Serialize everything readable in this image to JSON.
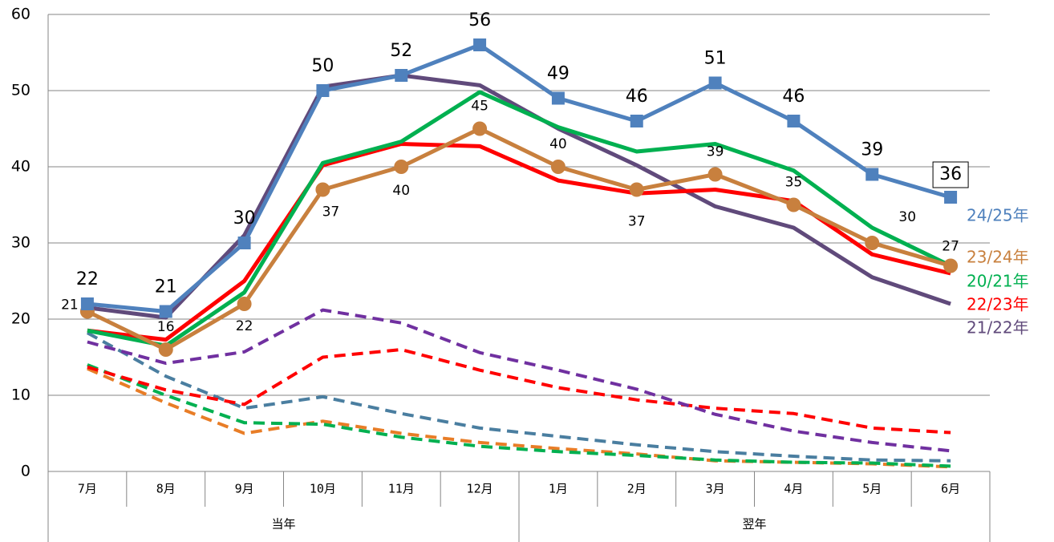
{
  "chart_data": {
    "type": "line",
    "categories": [
      "7月",
      "8月",
      "9月",
      "10月",
      "11月",
      "12月",
      "1月",
      "2月",
      "3月",
      "4月",
      "5月",
      "6月"
    ],
    "group_labels": [
      "当年",
      "翌年"
    ],
    "ylim": [
      0,
      60
    ],
    "yticks": [
      0,
      10,
      20,
      30,
      40,
      50,
      60
    ],
    "grid": true,
    "series": [
      {
        "name": "24/25年",
        "color": "#4f81bd",
        "marker": "square",
        "dashed": false,
        "labels": "large",
        "values": [
          22,
          21,
          30,
          50,
          52,
          56,
          49,
          46,
          51,
          46,
          39,
          36
        ]
      },
      {
        "name": "23/24年",
        "color": "#c8803e",
        "marker": "circle",
        "dashed": false,
        "labels": "small",
        "values": [
          21,
          16,
          22,
          37,
          40,
          45,
          40,
          37,
          39,
          35,
          30,
          27
        ]
      },
      {
        "name": "20/21年",
        "color": "#00b050",
        "dashed": false,
        "values": [
          18.5,
          16.5,
          23.5,
          40.5,
          43.3,
          49.8,
          45.2,
          42,
          43,
          39.5,
          32,
          27
        ]
      },
      {
        "name": "22/23年",
        "color": "#ff0000",
        "dashed": false,
        "values": [
          18.5,
          17.3,
          25,
          40.2,
          43,
          42.7,
          38.2,
          36.5,
          37,
          35.5,
          28.5,
          26
        ]
      },
      {
        "name": "21/22年",
        "color": "#604a7b",
        "dashed": false,
        "values": [
          21.5,
          20.2,
          31,
          50.5,
          52,
          50.7,
          45,
          40.2,
          34.8,
          32,
          25.5,
          22
        ]
      },
      {
        "color": "#7030a0",
        "dashed": true,
        "values": [
          17,
          14.2,
          15.7,
          21.2,
          19.5,
          15.6,
          13.3,
          10.8,
          7.5,
          5.3,
          3.8,
          2.7
        ]
      },
      {
        "color": "#ff0000",
        "dashed": true,
        "values": [
          13.7,
          10.7,
          8.8,
          15,
          16,
          13.3,
          11,
          9.4,
          8.3,
          7.6,
          5.7,
          5.1
        ]
      },
      {
        "color": "#4a7ea0",
        "dashed": true,
        "values": [
          18.2,
          12.5,
          8.3,
          9.8,
          7.6,
          5.7,
          4.6,
          3.5,
          2.6,
          2,
          1.5,
          1.4
        ]
      },
      {
        "color": "#00b050",
        "dashed": true,
        "values": [
          14,
          10,
          6.4,
          6.2,
          4.5,
          3.3,
          2.6,
          2.1,
          1.5,
          1.2,
          1.1,
          0.7
        ]
      },
      {
        "color": "#e87d27",
        "dashed": true,
        "values": [
          13.5,
          9,
          5,
          6.6,
          5,
          3.8,
          3,
          2.3,
          1.4,
          1.2,
          1,
          0.6
        ]
      }
    ]
  }
}
